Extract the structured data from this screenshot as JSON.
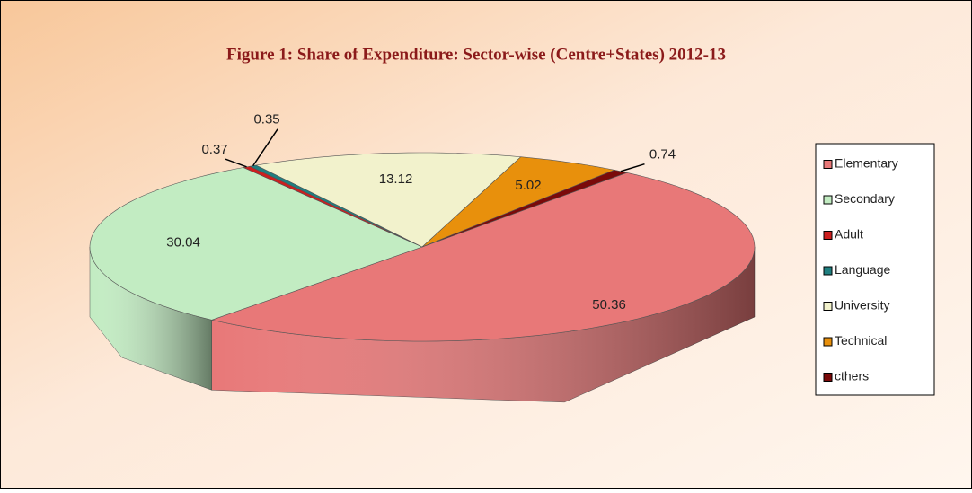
{
  "chart_data": {
    "type": "pie3d",
    "title": "Figure 1: Share of Expenditure: Sector-wise (Centre+States) 2012-13",
    "categories": [
      "Elementary",
      "Secondary",
      "Adult",
      "Language",
      "University",
      "Technical",
      "cthers"
    ],
    "values": [
      50.36,
      30.04,
      0.37,
      0.35,
      13.12,
      5.02,
      0.74
    ],
    "colors": [
      "#e87878",
      "#c2ecc2",
      "#cc1f1f",
      "#1f7f80",
      "#f2f2cc",
      "#e8900c",
      "#7a0a0a"
    ],
    "legend": "right"
  }
}
